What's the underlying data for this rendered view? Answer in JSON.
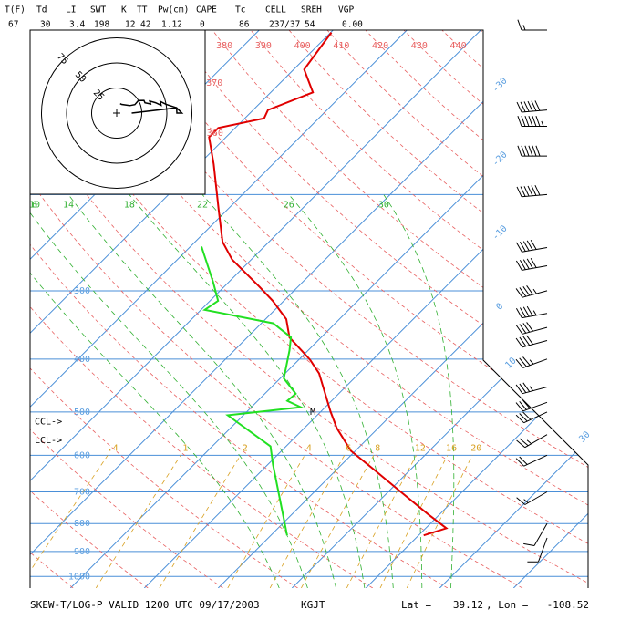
{
  "chart_data": {
    "type": "skewt",
    "header": {
      "labels": [
        "T(F)",
        "Td",
        "LI",
        "SWT",
        "K",
        "TT",
        "Pw(cm)",
        "CAPE",
        "Tc",
        "CELL",
        "SREH",
        "VGP"
      ],
      "values": [
        "67",
        "30",
        "3.4",
        "198",
        "12",
        "42",
        "1.12",
        "0",
        "86",
        "237/37",
        "54",
        "0.00"
      ]
    },
    "title": "SKEW-T/LOG-P VALID 1200 UTC 09/17/2003",
    "station": "KGJT",
    "lat_label": "Lat =",
    "lat": 39.12,
    "lon_label": ", Lon =",
    "lon": -108.52,
    "ylim": [
      1050,
      100
    ],
    "yticks": [
      300,
      400,
      500,
      600,
      700,
      800,
      900,
      1000
    ],
    "isobars": [
      100,
      200,
      300,
      400,
      500,
      600,
      700,
      800,
      900,
      1000
    ],
    "isotherms": [
      -110,
      -100,
      -90,
      -80,
      -70,
      -60,
      -50,
      -40,
      -30,
      -20,
      -10,
      0,
      10,
      20,
      30,
      40
    ],
    "xticks": [
      -30,
      -20,
      -10,
      0,
      10,
      30
    ],
    "dry_adiabats": [
      250,
      260,
      270,
      280,
      290,
      300,
      310,
      320,
      330,
      340,
      350,
      360,
      370,
      380,
      390,
      400,
      410,
      420,
      430,
      440,
      450
    ],
    "dry_adiabat_labels": [
      360,
      370,
      380,
      390,
      400,
      410,
      420,
      430,
      440
    ],
    "moist_adiabats": [
      6,
      10,
      14,
      18,
      22,
      26,
      30
    ],
    "mixing_ratios": [
      {
        "value": 0.4,
        "label": ".4"
      },
      1,
      2,
      4,
      6,
      8,
      12,
      16,
      20
    ],
    "series": [
      {
        "color": "#e00000",
        "pressure": [
          841,
          816,
          770,
          700,
          636,
          589,
          535,
          500,
          425,
          401,
          365,
          338,
          313,
          295,
          263,
          244,
          213,
          176,
          157,
          151,
          145,
          140,
          130,
          118,
          101
        ],
        "values": [
          20.7,
          22.8,
          18.5,
          11.7,
          4.9,
          -0.6,
          -5.6,
          -8.6,
          -15.4,
          -18.5,
          -24.3,
          -27.2,
          -31.5,
          -35.2,
          -42.6,
          -46.3,
          -51.2,
          -58.0,
          -62.3,
          -62.3,
          -57.4,
          -58.0,
          -54.3,
          -58.6,
          -59.9
        ]
      },
      {
        "color": "#22e022",
        "pressure": [
          841,
          756,
          624,
          578,
          507,
          490,
          477,
          463,
          434,
          386,
          365,
          344,
          325,
          313,
          290,
          249
        ],
        "values": [
          2.2,
          -1.9,
          -9.3,
          -12.1,
          -22.1,
          -13.3,
          -16.0,
          -15.8,
          -19.5,
          -22.5,
          -24.1,
          -28.4,
          -39.5,
          -38.9,
          -42.0,
          -48.5
        ]
      }
    ],
    "annotations": [
      {
        "text": "CCL->",
        "pressure": 521
      },
      {
        "text": "LCL->",
        "pressure": 563
      },
      {
        "text": "M",
        "pressure": 500,
        "temperature": -11.4
      }
    ],
    "winds": {
      "pressure": [
        850,
        800,
        700,
        600,
        550,
        500,
        480,
        450,
        400,
        370,
        350,
        330,
        300,
        270,
        250,
        200,
        170,
        150,
        140,
        100
      ],
      "direction": [
        200,
        210,
        240,
        245,
        240,
        245,
        250,
        255,
        250,
        255,
        255,
        260,
        255,
        260,
        260,
        265,
        270,
        270,
        265,
        270
      ],
      "speed": [
        10,
        10,
        15,
        20,
        25,
        30,
        30,
        35,
        35,
        40,
        40,
        45,
        45,
        50,
        50,
        60,
        60,
        65,
        60,
        15
      ]
    },
    "hodograph": {
      "rings": [
        25,
        50,
        75
      ]
    }
  }
}
